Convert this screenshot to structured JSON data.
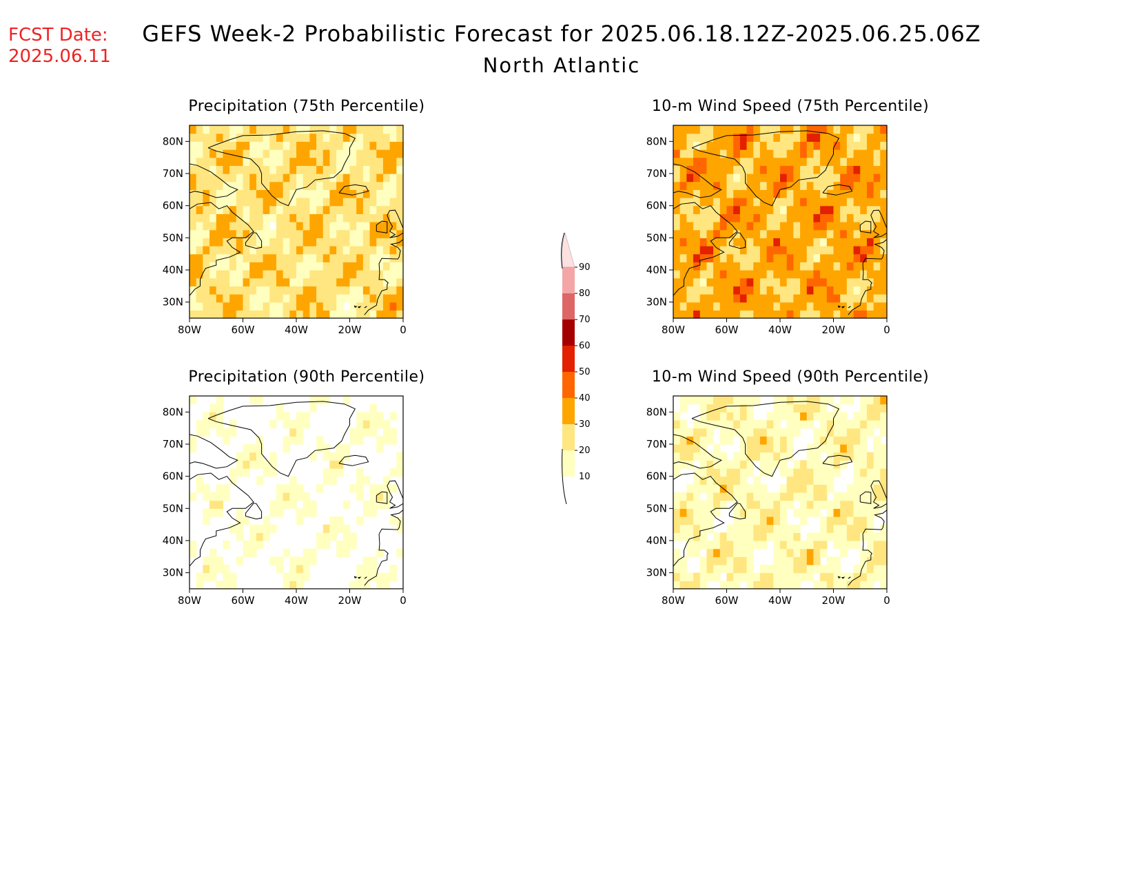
{
  "header": {
    "fcst_label": "FCST Date:",
    "fcst_date": "2025.06.11",
    "title": "GEFS Week-2 Probabilistic Forecast for 2025.06.18.12Z-2025.06.25.06Z",
    "subtitle": "North Atlantic"
  },
  "axes": {
    "lon_ticks": [
      "80W",
      "60W",
      "40W",
      "20W",
      "0"
    ],
    "lon_values": [
      -80,
      -60,
      -40,
      -20,
      0
    ],
    "lat_ticks": [
      "80N",
      "70N",
      "60N",
      "50N",
      "40N",
      "30N"
    ],
    "lat_values": [
      80,
      70,
      60,
      50,
      40,
      30
    ],
    "lon_range": [
      -80,
      0
    ],
    "lat_range": [
      25,
      85
    ]
  },
  "colorbar": {
    "levels": [
      "10",
      "20",
      "30",
      "40",
      "50",
      "60",
      "70",
      "80",
      "90"
    ],
    "colors": [
      "#ffffc0",
      "#ffe680",
      "#ffa500",
      "#ff6600",
      "#e32000",
      "#a50000",
      "#dd6666",
      "#f4a6a6",
      "#ffe0e0"
    ]
  },
  "panels": [
    {
      "id": "precip75",
      "title": "Precipitation (75th Percentile)",
      "intensity": 2
    },
    {
      "id": "wind75",
      "title": "10-m Wind Speed (75th Percentile)",
      "intensity": 3
    },
    {
      "id": "precip90",
      "title": "Precipitation (90th Percentile)",
      "intensity": 0
    },
    {
      "id": "wind90",
      "title": "10-m Wind Speed (90th Percentile)",
      "intensity": 1
    }
  ]
}
